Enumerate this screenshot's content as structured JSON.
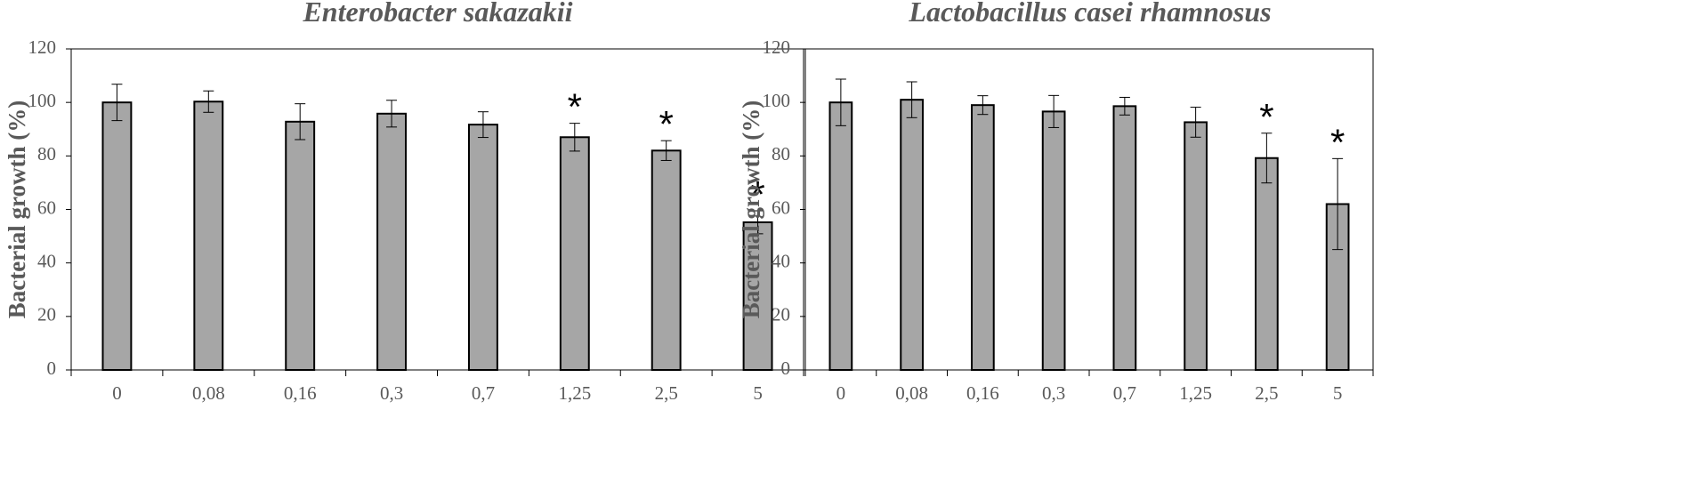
{
  "chart_data": [
    {
      "type": "bar",
      "title": "Enterobacter sakazakii",
      "xlabel": "",
      "ylabel": "Bacterial growth (%)",
      "ylim": [
        0,
        120
      ],
      "yticks": [
        0,
        20,
        40,
        60,
        80,
        100,
        120
      ],
      "categories": [
        "0",
        "0,08",
        "0,16",
        "0,3",
        "0,7",
        "1,25",
        "2,5",
        "5"
      ],
      "values": [
        100,
        100.3,
        92.8,
        95.8,
        91.7,
        87,
        82,
        55.2
      ],
      "errors": [
        6.8,
        4,
        6.7,
        5,
        4.8,
        5.2,
        3.7,
        4.3
      ],
      "significance": [
        "",
        "",
        "",
        "",
        "",
        "*",
        "*",
        "*"
      ],
      "bar_color": "#a6a6a6",
      "grid": false,
      "legend": "none"
    },
    {
      "type": "bar",
      "title": "Lactobacillus casei rhamnosus",
      "xlabel": "",
      "ylabel": "Bacterial growth (%)",
      "ylim": [
        0,
        120
      ],
      "yticks": [
        0,
        20,
        40,
        60,
        80,
        100,
        120
      ],
      "categories": [
        "0",
        "0,08",
        "0,16",
        "0,3",
        "0,7",
        "1,25",
        "2,5",
        "5"
      ],
      "values": [
        100,
        101,
        99,
        96.6,
        98.6,
        92.6,
        79.2,
        62
      ],
      "errors": [
        8.7,
        6.7,
        3.5,
        6,
        3.3,
        5.6,
        9.3,
        17
      ],
      "significance": [
        "",
        "",
        "",
        "",
        "",
        "",
        "*",
        "*"
      ],
      "bar_color": "#a6a6a6",
      "grid": false,
      "legend": "none"
    }
  ]
}
